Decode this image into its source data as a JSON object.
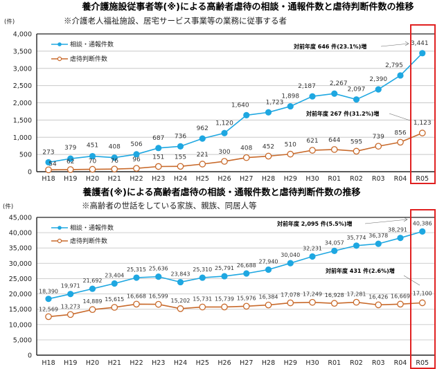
{
  "chart_data": [
    {
      "type": "line",
      "title": "養介護施設従事者等(※)による高齢者虐待の相談・通報件数と虐待判断件数の推移",
      "subtitle": "※介護老人福祉施設、居宅サービス事業等の業務に従事する者",
      "ylabel": "(件)",
      "xlabel": "",
      "ylim": [
        0,
        4000
      ],
      "yticks": [
        0,
        500,
        1000,
        1500,
        2000,
        2500,
        3000,
        3500,
        4000
      ],
      "ytick_labels": [
        "0",
        "500",
        "1,000",
        "1,500",
        "2,000",
        "2,500",
        "3,000",
        "3,500",
        "4,000"
      ],
      "grid": true,
      "legend_position": "top-left",
      "categories": [
        "H18",
        "H19",
        "H20",
        "H21",
        "H22",
        "H23",
        "H24",
        "H25",
        "H26",
        "H27",
        "H28",
        "H29",
        "H30",
        "R01",
        "R02",
        "R03",
        "R04",
        "R05"
      ],
      "series": [
        {
          "name": "相談・通報件数",
          "color": "#1ea7e1",
          "marker": "filled-circle",
          "values": [
            273,
            379,
            451,
            408,
            506,
            687,
            736,
            962,
            1120,
            1640,
            1723,
            1898,
            2187,
            2267,
            2097,
            2390,
            2795,
            3441
          ],
          "labels": [
            "273",
            "379",
            "451",
            "408",
            "506",
            "687",
            "736",
            "962",
            "1,120",
            "1,640",
            "1,723",
            "1,898",
            "2,187",
            "2,267",
            "2,097",
            "2,390",
            "2,795",
            "3,441"
          ]
        },
        {
          "name": "虐待判断件数",
          "color": "#c8692a",
          "marker": "open-circle",
          "values": [
            54,
            62,
            70,
            76,
            96,
            151,
            155,
            221,
            300,
            408,
            452,
            510,
            621,
            644,
            595,
            739,
            856,
            1123
          ],
          "labels": [
            "54",
            "62",
            "70",
            "76",
            "96",
            "151",
            "155",
            "221",
            "300",
            "408",
            "452",
            "510",
            "621",
            "644",
            "595",
            "739",
            "856",
            "1,123"
          ]
        }
      ],
      "annotations": [
        {
          "text": "対前年度 646 件(23.1%)増",
          "target_series": 0,
          "target_category": "R05"
        },
        {
          "text": "対前年度 267 件(31.2%)増",
          "target_series": 1,
          "target_category": "R05"
        }
      ],
      "highlight_category": "R05",
      "highlight_color": "#e02020"
    },
    {
      "type": "line",
      "title": "養護者(※)による高齢者虐待の相談・通報件数と虐待判断件数の推移",
      "subtitle": "※高齢者の世話をしている家族、親族、同居人等",
      "ylabel": "(件)",
      "xlabel": "",
      "ylim": [
        0,
        45000
      ],
      "yticks": [
        0,
        5000,
        10000,
        15000,
        20000,
        25000,
        30000,
        35000,
        40000,
        45000
      ],
      "ytick_labels": [
        "0",
        "5,000",
        "10,000",
        "15,000",
        "20,000",
        "25,000",
        "30,000",
        "35,000",
        "40,000",
        "45,000"
      ],
      "grid": true,
      "legend_position": "top-left",
      "categories": [
        "H18",
        "H19",
        "H20",
        "H21",
        "H22",
        "H23",
        "H24",
        "H25",
        "H26",
        "H27",
        "H28",
        "H29",
        "H30",
        "R01",
        "R02",
        "R03",
        "R04",
        "R05"
      ],
      "series": [
        {
          "name": "相談・通報件数",
          "color": "#1ea7e1",
          "marker": "filled-circle",
          "values": [
            18390,
            19971,
            21692,
            23404,
            25315,
            25636,
            23843,
            25310,
            25791,
            26688,
            27940,
            30040,
            32231,
            34057,
            35774,
            36378,
            38291,
            40386
          ],
          "labels": [
            "18,390",
            "19,971",
            "21,692",
            "23,404",
            "25,315",
            "25,636",
            "23,843",
            "25,310",
            "25,791",
            "26,688",
            "27,940",
            "30,040",
            "32,231",
            "34,057",
            "35,774",
            "36,378",
            "38,291",
            "40,386"
          ]
        },
        {
          "name": "虐待判断件数",
          "color": "#c8692a",
          "marker": "open-circle",
          "values": [
            12569,
            13273,
            14889,
            15615,
            16668,
            16599,
            15202,
            15731,
            15739,
            15976,
            16384,
            17078,
            17249,
            16928,
            17281,
            16426,
            16669,
            17100
          ],
          "labels": [
            "12,569",
            "13,273",
            "14,889",
            "15,615",
            "16,668",
            "16,599",
            "15,202",
            "15,731",
            "15,739",
            "15,976",
            "16,384",
            "17,078",
            "17,249",
            "16,928",
            "17,281",
            "16,426",
            "16,669",
            "17,100"
          ]
        }
      ],
      "annotations": [
        {
          "text": "対前年度 2,095 件(5.5%)増",
          "target_series": 0,
          "target_category": "R05"
        },
        {
          "text": "対前年度 431 件(2.6%)増",
          "target_series": 1,
          "target_category": "R05"
        }
      ],
      "highlight_category": "R05",
      "highlight_color": "#e02020"
    }
  ]
}
